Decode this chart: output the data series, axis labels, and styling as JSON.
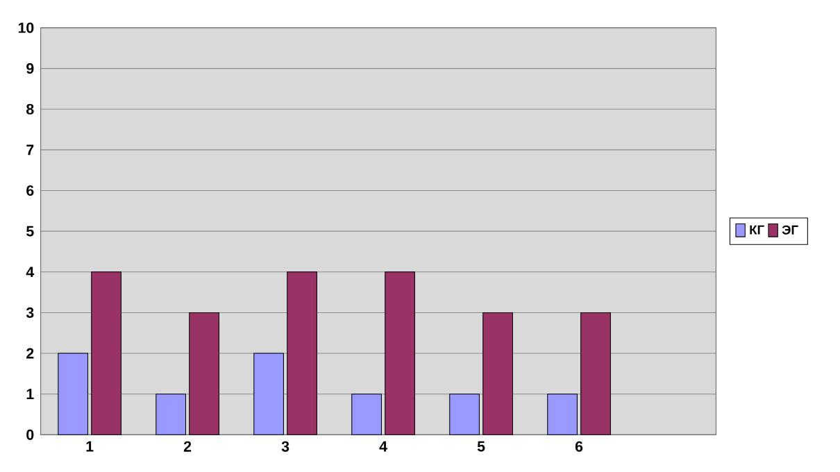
{
  "chart_data": {
    "type": "bar",
    "categories": [
      "1",
      "2",
      "3",
      "4",
      "5",
      "6"
    ],
    "series": [
      {
        "name": "КГ",
        "color": "#9999ff",
        "values": [
          2,
          1,
          2,
          1,
          1,
          1
        ]
      },
      {
        "name": "ЭГ",
        "color": "#993366",
        "values": [
          4,
          3,
          4,
          4,
          3,
          3
        ]
      }
    ],
    "ylim": [
      0,
      10
    ],
    "yticks": [
      0,
      1,
      2,
      3,
      4,
      5,
      6,
      7,
      8,
      9,
      10
    ],
    "grid": "y",
    "legend": "right"
  }
}
